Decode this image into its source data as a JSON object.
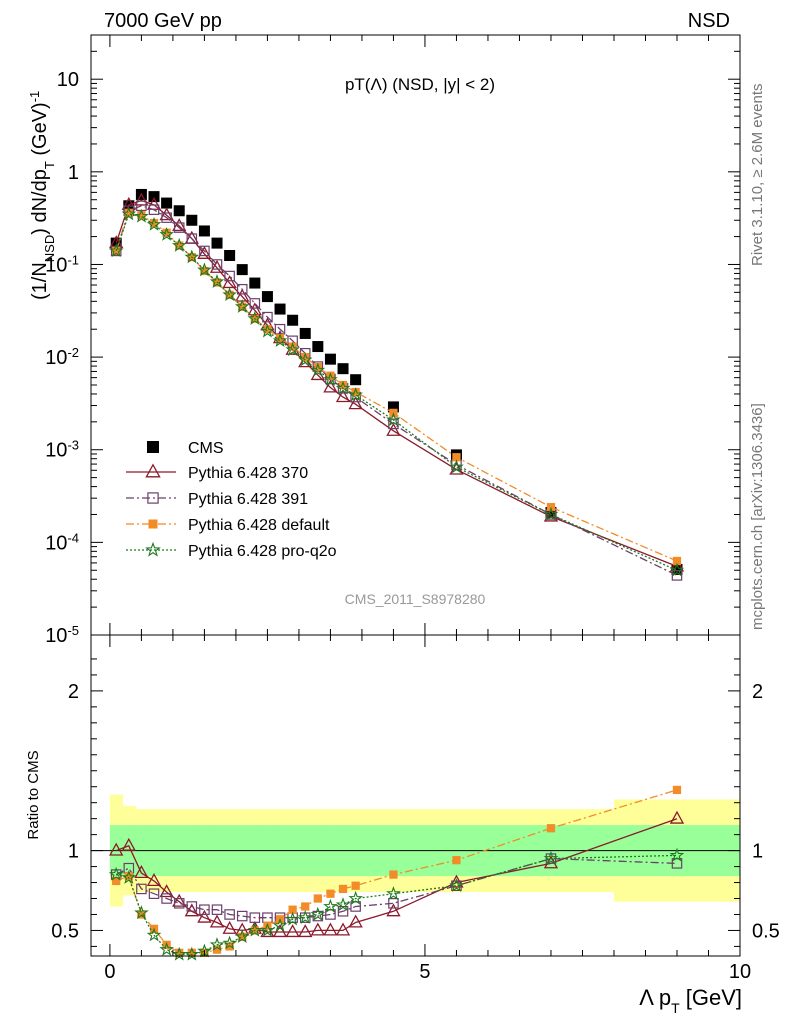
{
  "header": {
    "left": "7000 GeV pp",
    "right": "NSD"
  },
  "side_labels": {
    "rivet": "Rivet 3.1.10, ≥ 2.6M events",
    "mcplots": "mcplots.cern.ch [arXiv:1306.3436]"
  },
  "chart_data": [
    {
      "type": "scatter",
      "title": "pT(Λ) (NSD, |y| < 2)",
      "watermark": "CMS_2011_S8978280",
      "ylabel": "(1/N_NSD) dN/dp_T (GeV)^-1",
      "xlim": [
        -0.3,
        10
      ],
      "ylim": [
        1e-05,
        30
      ],
      "yscale": "log",
      "ytick_labels": [
        "10",
        "1",
        "10^-1",
        "10^-2",
        "10^-3",
        "10^-4",
        "10^-5"
      ],
      "legend_position": "lower-left",
      "series": [
        {
          "name": "CMS",
          "color": "#000000",
          "marker": "filled-square",
          "x": [
            0.1,
            0.3,
            0.5,
            0.7,
            0.9,
            1.1,
            1.3,
            1.5,
            1.7,
            1.9,
            2.1,
            2.3,
            2.5,
            2.7,
            2.9,
            3.1,
            3.3,
            3.5,
            3.7,
            3.9,
            4.5,
            5.5,
            7.0,
            9.0
          ],
          "y": [
            0.17,
            0.43,
            0.57,
            0.54,
            0.46,
            0.38,
            0.3,
            0.23,
            0.17,
            0.125,
            0.088,
            0.063,
            0.045,
            0.033,
            0.025,
            0.018,
            0.013,
            0.0095,
            0.0075,
            0.0057,
            0.0029,
            0.00088,
            0.00021,
            5.1e-05
          ]
        },
        {
          "name": "Pythia 6.428 370",
          "color": "#8b1a2b",
          "marker": "open-triangle",
          "line": "solid",
          "x": [
            0.1,
            0.3,
            0.5,
            0.7,
            0.9,
            1.1,
            1.3,
            1.5,
            1.7,
            1.9,
            2.1,
            2.3,
            2.5,
            2.7,
            2.9,
            3.1,
            3.3,
            3.5,
            3.7,
            3.9,
            4.5,
            5.5,
            7.0,
            9.0
          ],
          "y": [
            0.17,
            0.44,
            0.49,
            0.44,
            0.34,
            0.26,
            0.19,
            0.13,
            0.092,
            0.063,
            0.045,
            0.032,
            0.022,
            0.016,
            0.012,
            0.0088,
            0.0064,
            0.0047,
            0.0037,
            0.0031,
            0.0016,
            0.00061,
            0.00019,
            5.5e-05
          ]
        },
        {
          "name": "Pythia 6.428 391",
          "color": "#6b3f6b",
          "marker": "open-square",
          "line": "dashdot",
          "x": [
            0.1,
            0.3,
            0.5,
            0.7,
            0.9,
            1.1,
            1.3,
            1.5,
            1.7,
            1.9,
            2.1,
            2.3,
            2.5,
            2.7,
            2.9,
            3.1,
            3.3,
            3.5,
            3.7,
            3.9,
            4.5,
            5.5,
            7.0,
            9.0
          ],
          "y": [
            0.14,
            0.38,
            0.43,
            0.39,
            0.32,
            0.25,
            0.19,
            0.14,
            0.1,
            0.075,
            0.054,
            0.038,
            0.027,
            0.02,
            0.015,
            0.011,
            0.0079,
            0.0058,
            0.0046,
            0.0037,
            0.0019,
            0.00069,
            0.0002,
            4.4e-05
          ]
        },
        {
          "name": "Pythia 6.428 default",
          "color": "#f28c28",
          "marker": "filled-square-small",
          "line": "dashdot",
          "x": [
            0.1,
            0.3,
            0.5,
            0.7,
            0.9,
            1.1,
            1.3,
            1.5,
            1.7,
            1.9,
            2.1,
            2.3,
            2.5,
            2.7,
            2.9,
            3.1,
            3.3,
            3.5,
            3.7,
            3.9,
            4.5,
            5.5,
            7.0,
            9.0
          ],
          "y": [
            0.14,
            0.36,
            0.34,
            0.28,
            0.22,
            0.16,
            0.12,
            0.085,
            0.064,
            0.047,
            0.035,
            0.026,
            0.02,
            0.016,
            0.013,
            0.01,
            0.0078,
            0.0063,
            0.005,
            0.0042,
            0.0025,
            0.00083,
            0.00024,
            6.3e-05
          ]
        },
        {
          "name": "Pythia 6.428 pro-q2o",
          "color": "#1e7a1e",
          "marker": "open-star",
          "line": "dotted",
          "x": [
            0.1,
            0.3,
            0.5,
            0.7,
            0.9,
            1.1,
            1.3,
            1.5,
            1.7,
            1.9,
            2.1,
            2.3,
            2.5,
            2.7,
            2.9,
            3.1,
            3.3,
            3.5,
            3.7,
            3.9,
            4.5,
            5.5,
            7.0,
            9.0
          ],
          "y": [
            0.14,
            0.35,
            0.33,
            0.27,
            0.21,
            0.16,
            0.12,
            0.087,
            0.065,
            0.047,
            0.035,
            0.026,
            0.019,
            0.015,
            0.012,
            0.0093,
            0.0072,
            0.0057,
            0.0046,
            0.0039,
            0.0021,
            0.00065,
            0.0002,
            5e-05
          ]
        }
      ]
    },
    {
      "type": "scatter",
      "ylabel": "Ratio to CMS",
      "xlabel": "Λ p_T [GeV]",
      "xlim": [
        -0.3,
        10
      ],
      "ylim": [
        0.34,
        2.35
      ],
      "x_ticks": [
        0,
        5,
        10
      ],
      "y_ticks": [
        0.5,
        1,
        2
      ],
      "reference_line": 1,
      "bands": {
        "green_color": "#99ff99",
        "yellow_color": "#ffff99",
        "x_edges": [
          0,
          0.2,
          0.4,
          0.6,
          0.8,
          1.0,
          1.2,
          1.4,
          1.6,
          1.8,
          2.0,
          2.2,
          2.4,
          2.6,
          2.8,
          3.0,
          3.2,
          3.4,
          3.6,
          3.8,
          4.0,
          5.0,
          6.0,
          8.0,
          10.0
        ],
        "green_half_width": [
          0.16,
          0.16,
          0.16,
          0.16,
          0.16,
          0.16,
          0.16,
          0.16,
          0.16,
          0.16,
          0.16,
          0.16,
          0.16,
          0.16,
          0.16,
          0.16,
          0.16,
          0.16,
          0.16,
          0.16,
          0.16,
          0.16,
          0.16,
          0.16
        ],
        "yellow_half_width": [
          0.35,
          0.28,
          0.26,
          0.26,
          0.26,
          0.26,
          0.26,
          0.26,
          0.26,
          0.26,
          0.26,
          0.26,
          0.26,
          0.26,
          0.26,
          0.26,
          0.26,
          0.26,
          0.26,
          0.26,
          0.26,
          0.26,
          0.26,
          0.32
        ]
      },
      "series": [
        {
          "name": "Pythia 6.428 370",
          "color": "#8b1a2b",
          "x": [
            0.1,
            0.3,
            0.5,
            0.7,
            0.9,
            1.1,
            1.3,
            1.5,
            1.7,
            1.9,
            2.1,
            2.3,
            2.5,
            2.7,
            2.9,
            3.1,
            3.3,
            3.5,
            3.7,
            3.9,
            4.5,
            5.5,
            7.0,
            9.0
          ],
          "y": [
            1.0,
            1.03,
            0.86,
            0.81,
            0.74,
            0.68,
            0.62,
            0.58,
            0.55,
            0.51,
            0.5,
            0.51,
            0.49,
            0.49,
            0.49,
            0.49,
            0.5,
            0.5,
            0.5,
            0.55,
            0.62,
            0.8,
            0.92,
            1.2
          ]
        },
        {
          "name": "Pythia 6.428 391",
          "color": "#6b3f6b",
          "x": [
            0.1,
            0.3,
            0.5,
            0.7,
            0.9,
            1.1,
            1.3,
            1.5,
            1.7,
            1.9,
            2.1,
            2.3,
            2.5,
            2.7,
            2.9,
            3.1,
            3.3,
            3.5,
            3.7,
            3.9,
            4.5,
            5.5,
            7.0,
            9.0
          ],
          "y": [
            0.85,
            0.89,
            0.76,
            0.73,
            0.7,
            0.67,
            0.65,
            0.63,
            0.63,
            0.6,
            0.59,
            0.58,
            0.58,
            0.58,
            0.58,
            0.58,
            0.59,
            0.6,
            0.62,
            0.65,
            0.67,
            0.78,
            0.95,
            0.92
          ]
        },
        {
          "name": "Pythia 6.428 default",
          "color": "#f28c28",
          "x": [
            0.1,
            0.3,
            0.5,
            0.7,
            0.9,
            1.1,
            1.3,
            1.5,
            1.7,
            1.9,
            2.1,
            2.3,
            2.5,
            2.7,
            2.9,
            3.1,
            3.3,
            3.5,
            3.7,
            3.9,
            4.5,
            5.5,
            7.0,
            9.0
          ],
          "y": [
            0.81,
            0.84,
            0.6,
            0.51,
            0.41,
            0.36,
            0.36,
            0.36,
            0.38,
            0.4,
            0.46,
            0.5,
            0.53,
            0.57,
            0.63,
            0.65,
            0.7,
            0.73,
            0.76,
            0.78,
            0.85,
            0.94,
            1.14,
            1.38
          ]
        },
        {
          "name": "Pythia 6.428 pro-q2o",
          "color": "#1e7a1e",
          "x": [
            0.1,
            0.3,
            0.5,
            0.7,
            0.9,
            1.1,
            1.3,
            1.5,
            1.7,
            1.9,
            2.1,
            2.3,
            2.5,
            2.7,
            2.9,
            3.1,
            3.3,
            3.5,
            3.7,
            3.9,
            4.5,
            5.5,
            7.0,
            9.0
          ],
          "y": [
            0.85,
            0.83,
            0.61,
            0.47,
            0.38,
            0.35,
            0.35,
            0.37,
            0.41,
            0.42,
            0.46,
            0.5,
            0.5,
            0.53,
            0.57,
            0.58,
            0.6,
            0.65,
            0.66,
            0.7,
            0.73,
            0.78,
            0.95,
            0.97
          ]
        }
      ]
    }
  ]
}
